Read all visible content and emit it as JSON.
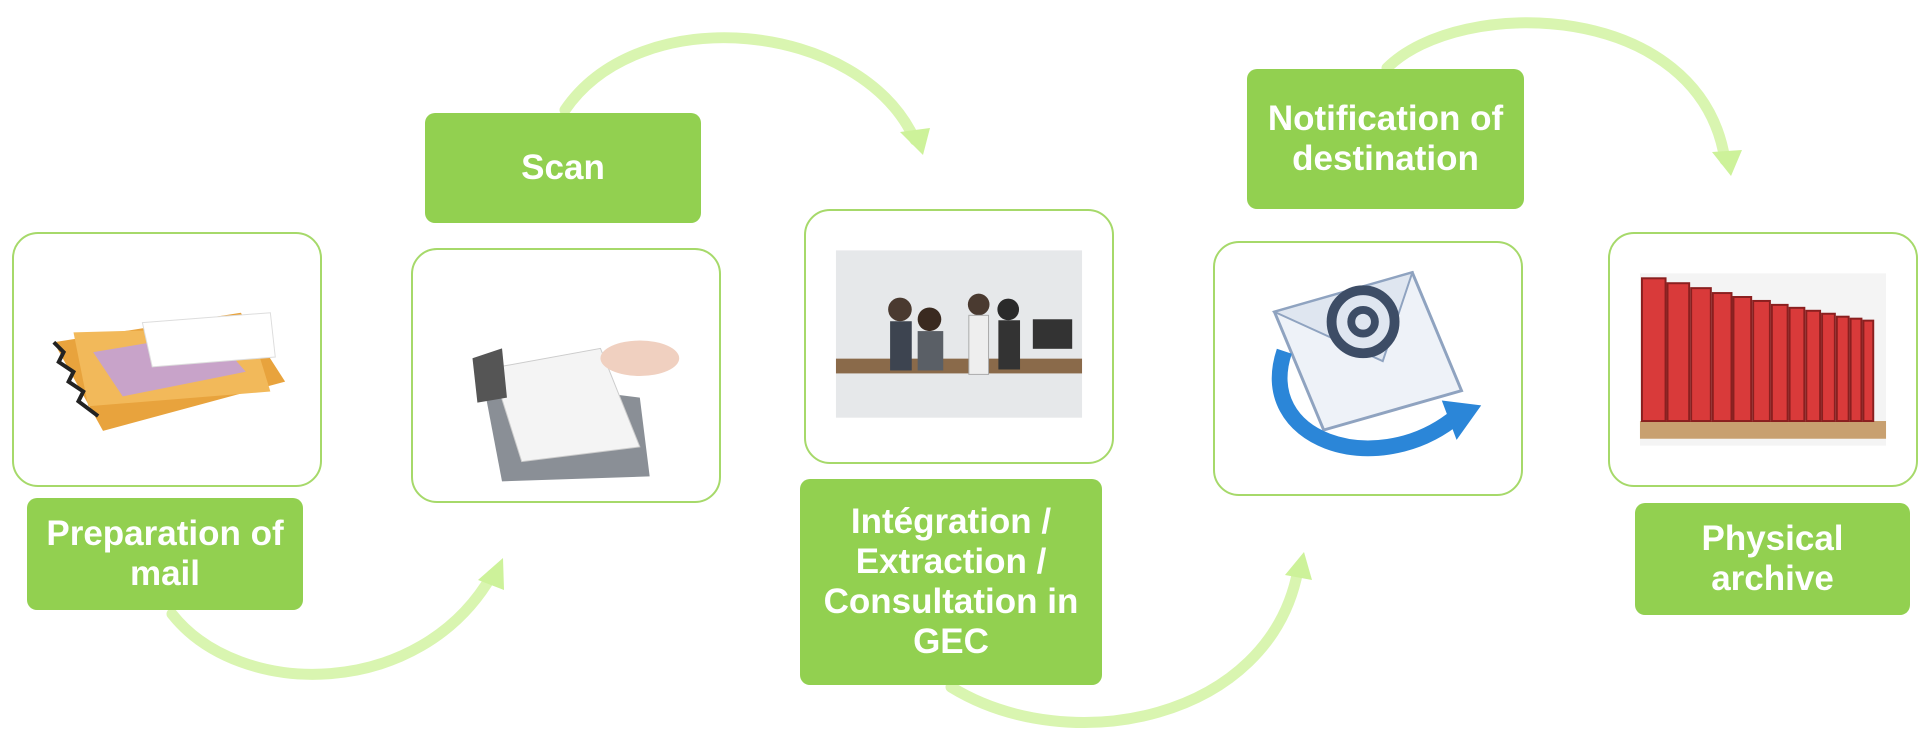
{
  "steps": [
    {
      "label": "Preparation of mail"
    },
    {
      "label": "Scan"
    },
    {
      "label": "Intégration / Extraction / Consultation in GEC"
    },
    {
      "label": "Notification of destination"
    },
    {
      "label": "Physical archive"
    }
  ]
}
